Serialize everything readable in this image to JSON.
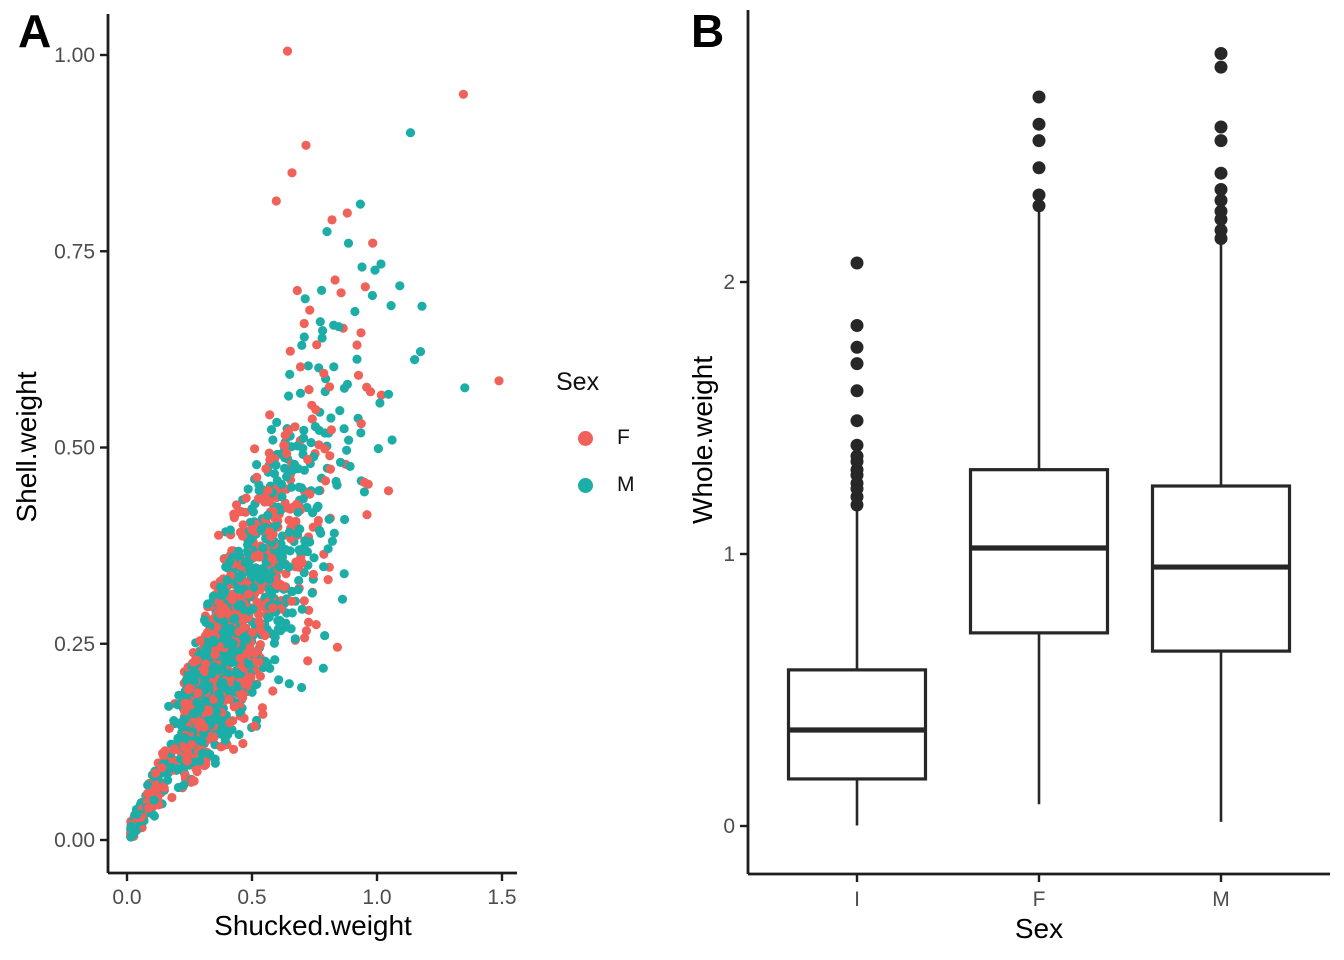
{
  "figure": {
    "background": "#ffffff"
  },
  "chart_data": [
    {
      "panel": "A",
      "tag": "A",
      "type": "scatter",
      "x_label": "Shucked.weight",
      "y_label": "Shell.weight",
      "x_ticks": [
        {
          "v": 0,
          "label": "0.0"
        },
        {
          "v": 0.5,
          "label": "0.5"
        },
        {
          "v": 1,
          "label": "1.0"
        },
        {
          "v": 1.5,
          "label": "1.5"
        }
      ],
      "y_ticks": [
        {
          "v": 0,
          "label": "0.00"
        },
        {
          "v": 0.25,
          "label": "0.25"
        },
        {
          "v": 0.5,
          "label": "0.50"
        },
        {
          "v": 0.75,
          "label": "0.75"
        },
        {
          "v": 1,
          "label": "1.00"
        }
      ],
      "x_range": [
        0,
        1.5
      ],
      "y_range": [
        0,
        1.0
      ],
      "grid": false,
      "legend": {
        "title": "Sex",
        "position": "right",
        "items": [
          {
            "label": "F",
            "color": "#F0615A"
          },
          {
            "label": "M",
            "color": "#1DADA7"
          }
        ]
      },
      "points_spec": {
        "comment": "approx 2800-point abalone cloud; shell.weight rises ~0.62x of shucked.weight with widening spread",
        "seed": 20421,
        "n": 1750,
        "f_share": 0.46,
        "adult_center": 0.42,
        "adult_spread": 0.175,
        "adult_skew": 0.04,
        "small_frac": 0.15,
        "small_max": 0.3,
        "ratio_mean": 0.615,
        "ratio_sd": 0.145,
        "point_radius": 4.6
      },
      "notable_points": {
        "F": [
          [
            0.642,
            1.005
          ],
          [
            0.716,
            0.885
          ],
          [
            0.66,
            0.85
          ],
          [
            0.597,
            0.814
          ],
          [
            0.82,
            0.79
          ],
          [
            1.488,
            0.585
          ]
        ],
        "M": [
          [
            1.134,
            0.901
          ],
          [
            0.8,
            0.775
          ],
          [
            0.94,
            0.73
          ],
          [
            1.18,
            0.68
          ],
          [
            1.351,
            0.576
          ]
        ]
      }
    },
    {
      "panel": "B",
      "tag": "B",
      "type": "boxplot",
      "x_label": "Sex",
      "y_label": "Whole.weight",
      "categories": [
        "I",
        "F",
        "M"
      ],
      "y_ticks": [
        {
          "v": 0,
          "label": "0"
        },
        {
          "v": 1,
          "label": "1"
        },
        {
          "v": 2,
          "label": "2"
        }
      ],
      "y_range": [
        0,
        2.95
      ],
      "grid": false,
      "boxes": [
        {
          "category": "I",
          "q1": 0.173,
          "median": 0.353,
          "q3": 0.574,
          "whisker_low": 0.002,
          "whisker_high": 1.162,
          "outliers": [
            1.18,
            1.21,
            1.24,
            1.26,
            1.29,
            1.31,
            1.34,
            1.36,
            1.4,
            1.49,
            1.6,
            1.7,
            1.76,
            1.84,
            2.07
          ]
        },
        {
          "category": "F",
          "q1": 0.71,
          "median": 1.022,
          "q3": 1.31,
          "whisker_low": 0.08,
          "whisker_high": 2.258,
          "outliers": [
            2.28,
            2.32,
            2.42,
            2.52,
            2.58,
            2.68
          ]
        },
        {
          "category": "M",
          "q1": 0.643,
          "median": 0.952,
          "q3": 1.25,
          "whisker_low": 0.015,
          "whisker_high": 2.14,
          "outliers": [
            2.16,
            2.19,
            2.23,
            2.26,
            2.3,
            2.34,
            2.4,
            2.52,
            2.57,
            2.79,
            2.84
          ]
        }
      ]
    }
  ]
}
